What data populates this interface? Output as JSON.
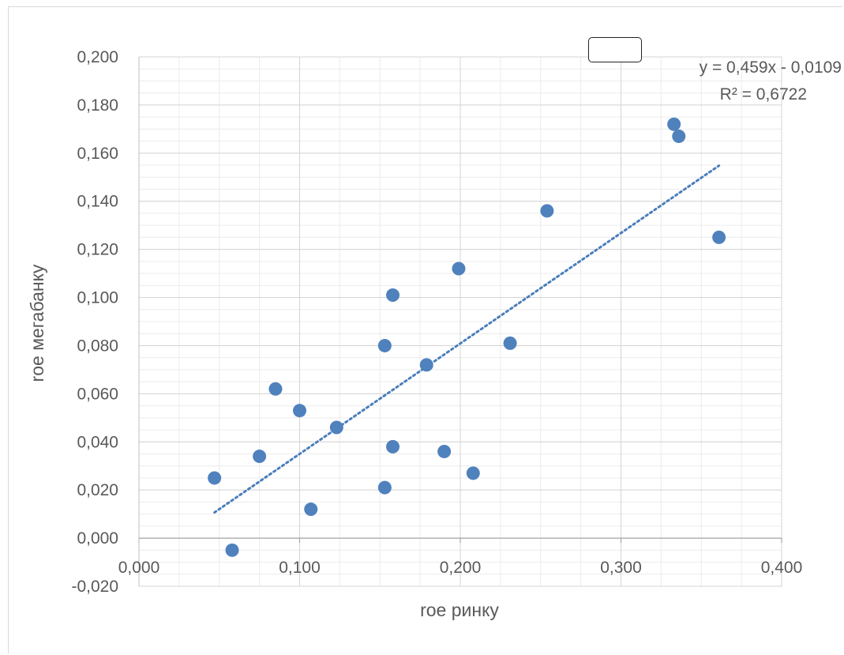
{
  "chart_data": {
    "type": "scatter",
    "xlabel": "roe ринку",
    "ylabel": "roe мегабанку",
    "xlim": [
      0,
      0.4
    ],
    "ylim": [
      -0.02,
      0.2
    ],
    "x_major_step": 0.1,
    "y_major_step": 0.02,
    "x_tick_labels": [
      "0,000",
      "0,100",
      "0,200",
      "0,300",
      "0,400"
    ],
    "y_tick_labels": [
      "-0,020",
      "0,000",
      "0,020",
      "0,040",
      "0,060",
      "0,080",
      "0,100",
      "0,120",
      "0,140",
      "0,160",
      "0,180",
      "0,200"
    ],
    "grid": true,
    "marker_color": "#4f81bd",
    "trendline_color": "#4a7ebb",
    "series": [
      {
        "x": [
          0.047,
          0.058,
          0.075,
          0.085,
          0.1,
          0.107,
          0.123,
          0.153,
          0.153,
          0.158,
          0.158,
          0.179,
          0.19,
          0.199,
          0.208,
          0.231,
          0.254,
          0.333,
          0.336,
          0.361
        ],
        "y": [
          0.025,
          -0.005,
          0.034,
          0.062,
          0.053,
          0.012,
          0.046,
          0.08,
          0.021,
          0.101,
          0.038,
          0.072,
          0.036,
          0.112,
          0.027,
          0.081,
          0.136,
          0.172,
          0.167,
          0.125
        ]
      }
    ],
    "trendline": {
      "type": "linear",
      "slope": 0.459,
      "intercept": -0.0109,
      "x_range": [
        0.047,
        0.361
      ],
      "equation": "y = 0,459x - 0,0109",
      "r2": "R² = 0,6722"
    }
  }
}
